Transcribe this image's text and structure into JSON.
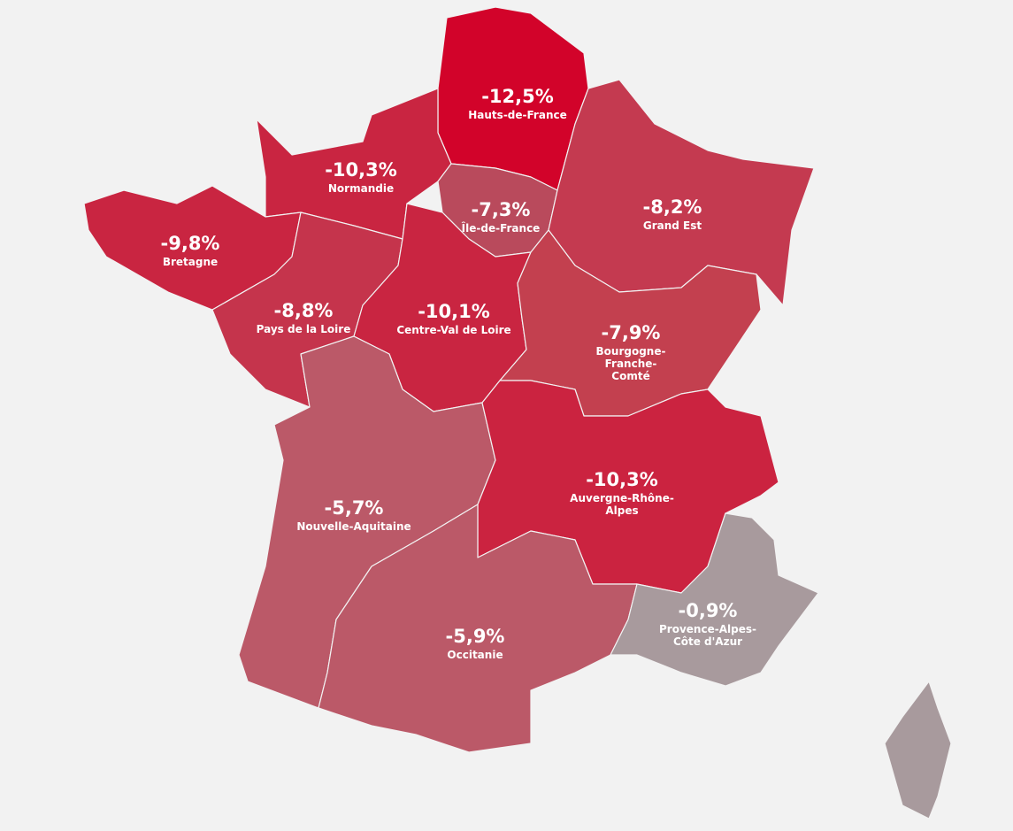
{
  "chart_data": {
    "type": "map",
    "categories": [
      "Hauts-de-France",
      "Normandie",
      "Île-de-France",
      "Grand Est",
      "Bretagne",
      "Pays de la Loire",
      "Centre-Val de Loire",
      "Bourgogne-Franche-Comté",
      "Nouvelle-Aquitaine",
      "Auvergne-Rhône-Alpes",
      "Occitanie",
      "Provence-Alpes-Côte d'Azur"
    ],
    "values": [
      -12.5,
      -10.3,
      -7.3,
      -8.2,
      -9.8,
      -8.8,
      -10.1,
      -7.9,
      -5.7,
      -10.3,
      -5.9,
      -0.9
    ],
    "value_labels": [
      "-12,5%",
      "-10,3%",
      "-7,3%",
      "-8,2%",
      "-9,8%",
      "-8,8%",
      "-10,1%",
      "-7,9%",
      "-5,7%",
      "-10,3%",
      "-5,9%",
      "-0,9%"
    ],
    "colors": [
      "#d2032a",
      "#c92541",
      "#b94a5c",
      "#c43a50",
      "#c92541",
      "#c5344c",
      "#c92541",
      "#c3404f",
      "#bb5968",
      "#cb2340",
      "#bb5968",
      "#a89a9d"
    ]
  }
}
